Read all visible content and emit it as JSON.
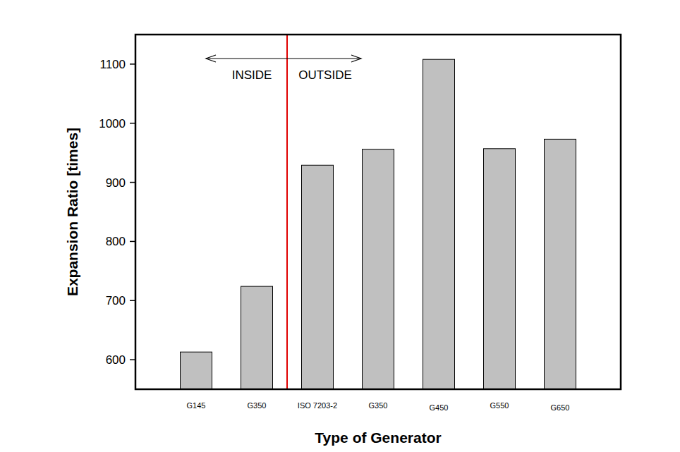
{
  "chart_data": {
    "type": "bar",
    "x_label": "Type of Generator",
    "y_label": "Expansion Ratio [times]",
    "categories": [
      "G145",
      "G350",
      "ISO 7203-2",
      "G350",
      "G450",
      "G550",
      "G650"
    ],
    "values": [
      613,
      724,
      929,
      956,
      1108,
      957,
      973
    ],
    "color": "#c0c0c0",
    "ylim": [
      550,
      1150
    ],
    "yticks": [
      600,
      700,
      800,
      900,
      1000,
      1100
    ],
    "grid": false,
    "annotations": [
      {
        "text": "INSIDE",
        "categories": [
          0,
          1
        ]
      },
      {
        "text": "OUTSIDE",
        "categories": [
          2,
          3,
          4,
          5,
          6
        ]
      }
    ]
  }
}
